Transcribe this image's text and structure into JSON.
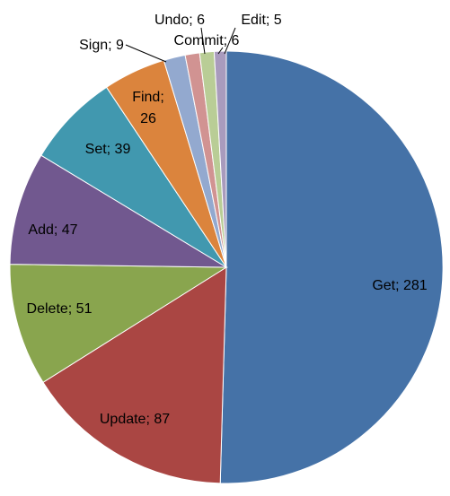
{
  "chart_data": {
    "type": "pie",
    "label_format": "{category}; {value}",
    "categories": [
      "Get",
      "Update",
      "Delete",
      "Add",
      "Set",
      "Find",
      "Sign",
      "Undo",
      "Commit",
      "Edit"
    ],
    "values": [
      281,
      87,
      51,
      47,
      39,
      26,
      9,
      6,
      6,
      5
    ],
    "colors": [
      "#4572A7",
      "#AA4643",
      "#89A54E",
      "#71588F",
      "#4198AF",
      "#DB843D",
      "#93A9CF",
      "#D19392",
      "#B9CD96",
      "#A99BBD"
    ],
    "title": "",
    "legend": "none",
    "start_direction": "top",
    "rotation": "clockwise"
  }
}
